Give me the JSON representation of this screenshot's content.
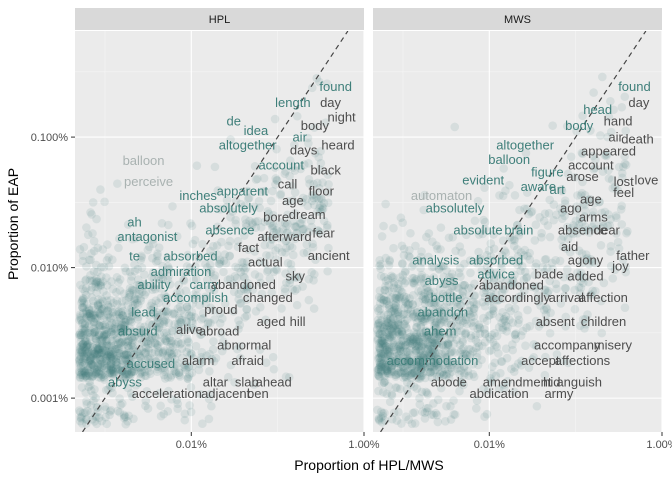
{
  "chart_data": {
    "type": "scatter",
    "xlabel": "Proportion of HPL/MWS",
    "ylabel": "Proportion of EAP",
    "x_scale": "log10",
    "y_scale": "log10",
    "xlim": [
      4.5e-06,
      0.01
    ],
    "ylim": [
      5.5e-06,
      0.0065
    ],
    "x_ticks": [
      {
        "value": 0.0001,
        "label": "0.01%"
      },
      {
        "value": 0.01,
        "label": "1.00%"
      }
    ],
    "y_ticks": [
      {
        "value": 1e-05,
        "label": "0.001%"
      },
      {
        "value": 0.0001,
        "label": "0.010%"
      },
      {
        "value": 0.001,
        "label": "0.100%"
      }
    ],
    "reference_line": "y = x (dashed)",
    "color": "#3f7f7a",
    "text_dark": "#4d4d4d",
    "text_light": "#a9b2b1",
    "panels": [
      {
        "strip": "HPL",
        "x_tick_labels": [
          "0.01%",
          "1.00%"
        ],
        "words": [
          {
            "t": "found",
            "x": 0.0047,
            "y": 0.0024
          },
          {
            "t": "day",
            "x": 0.0041,
            "y": 0.0018
          },
          {
            "t": "night",
            "x": 0.0055,
            "y": 0.0014
          },
          {
            "t": "length",
            "x": 0.0015,
            "y": 0.0018
          },
          {
            "t": "de",
            "x": 0.00031,
            "y": 0.0013
          },
          {
            "t": "idea",
            "x": 0.00056,
            "y": 0.0011
          },
          {
            "t": "body",
            "x": 0.0027,
            "y": 0.0012
          },
          {
            "t": "air",
            "x": 0.0018,
            "y": 0.00098
          },
          {
            "t": "altogether",
            "x": 0.00045,
            "y": 0.00085
          },
          {
            "t": "days",
            "x": 0.002,
            "y": 0.00078
          },
          {
            "t": "heard",
            "x": 0.005,
            "y": 0.00085
          },
          {
            "t": "balloon",
            "x": 2.8e-05,
            "y": 0.00065
          },
          {
            "t": "account",
            "x": 0.0011,
            "y": 0.0006
          },
          {
            "t": "black",
            "x": 0.0036,
            "y": 0.00055
          },
          {
            "t": "perceive",
            "x": 3.2e-05,
            "y": 0.00045
          },
          {
            "t": "call",
            "x": 0.0013,
            "y": 0.00043
          },
          {
            "t": "inches",
            "x": 0.00012,
            "y": 0.00035
          },
          {
            "t": "apparent",
            "x": 0.00039,
            "y": 0.00038
          },
          {
            "t": "age",
            "x": 0.0015,
            "y": 0.00032
          },
          {
            "t": "floor",
            "x": 0.0032,
            "y": 0.00038
          },
          {
            "t": "absolutely",
            "x": 0.00027,
            "y": 0.00028
          },
          {
            "t": "bore",
            "x": 0.00096,
            "y": 0.00024
          },
          {
            "t": "dream",
            "x": 0.0022,
            "y": 0.00025
          },
          {
            "t": "ah",
            "x": 2.2e-05,
            "y": 0.00022
          },
          {
            "t": "absence",
            "x": 0.00028,
            "y": 0.00019
          },
          {
            "t": "antagonist",
            "x": 3.1e-05,
            "y": 0.00017
          },
          {
            "t": "afterward",
            "x": 0.0012,
            "y": 0.00017
          },
          {
            "t": "fear",
            "x": 0.0034,
            "y": 0.00018
          },
          {
            "t": "fact",
            "x": 0.00046,
            "y": 0.00014
          },
          {
            "t": "te",
            "x": 2.2e-05,
            "y": 0.00012
          },
          {
            "t": "absorbed",
            "x": 9.8e-05,
            "y": 0.00012
          },
          {
            "t": "actual",
            "x": 0.00072,
            "y": 0.000108
          },
          {
            "t": "ancient",
            "x": 0.0039,
            "y": 0.000122
          },
          {
            "t": "admiration",
            "x": 7.6e-05,
            "y": 9.2e-05
          },
          {
            "t": "sky",
            "x": 0.0016,
            "y": 8.5e-05
          },
          {
            "t": "ability",
            "x": 3.7e-05,
            "y": 7.3e-05
          },
          {
            "t": "carry",
            "x": 0.00014,
            "y": 7.3e-05
          },
          {
            "t": "abandoned",
            "x": 0.0004,
            "y": 7.3e-05
          },
          {
            "t": "accomplish",
            "x": 0.000112,
            "y": 5.8e-05
          },
          {
            "t": "changed",
            "x": 0.00077,
            "y": 5.8e-05
          },
          {
            "t": "lead",
            "x": 2.8e-05,
            "y": 4.5e-05
          },
          {
            "t": "proud",
            "x": 0.00022,
            "y": 4.7e-05
          },
          {
            "t": "aged",
            "x": 0.00084,
            "y": 3.8e-05
          },
          {
            "t": "hill",
            "x": 0.0017,
            "y": 3.8e-05
          },
          {
            "t": "absurd",
            "x": 2.4e-05,
            "y": 3.2e-05
          },
          {
            "t": "alive",
            "x": 9.5e-05,
            "y": 3.3e-05
          },
          {
            "t": "abroad",
            "x": 0.00021,
            "y": 3.2e-05
          },
          {
            "t": "abnormal",
            "x": 0.00041,
            "y": 2.5e-05
          },
          {
            "t": "accused",
            "x": 3.4e-05,
            "y": 1.8e-05
          },
          {
            "t": "alarm",
            "x": 0.00012,
            "y": 1.9e-05
          },
          {
            "t": "afraid",
            "x": 0.00045,
            "y": 1.9e-05
          },
          {
            "t": "abyss",
            "x": 1.7e-05,
            "y": 1.3e-05
          },
          {
            "t": "altar",
            "x": 0.00019,
            "y": 1.3e-05
          },
          {
            "t": "slab",
            "x": 0.00044,
            "y": 1.3e-05
          },
          {
            "t": "ahead",
            "x": 0.0009,
            "y": 1.3e-05
          },
          {
            "t": "acceleration",
            "x": 5.2e-05,
            "y": 1.06e-05
          },
          {
            "t": "adjacent",
            "x": 0.00025,
            "y": 1.06e-05
          },
          {
            "t": "ben",
            "x": 0.00059,
            "y": 1.06e-05
          }
        ]
      },
      {
        "strip": "MWS",
        "x_tick_labels": [
          "0.01%",
          "1.00%"
        ],
        "words": [
          {
            "t": "found",
            "x": 0.0048,
            "y": 0.0024
          },
          {
            "t": "day",
            "x": 0.0054,
            "y": 0.0018
          },
          {
            "t": "head",
            "x": 0.0018,
            "y": 0.0016
          },
          {
            "t": "hand",
            "x": 0.0031,
            "y": 0.0013
          },
          {
            "t": "body",
            "x": 0.0011,
            "y": 0.0012
          },
          {
            "t": "air",
            "x": 0.0029,
            "y": 0.00098
          },
          {
            "t": "death",
            "x": 0.0052,
            "y": 0.00095
          },
          {
            "t": "altogether",
            "x": 0.00026,
            "y": 0.00085
          },
          {
            "t": "appeared",
            "x": 0.0024,
            "y": 0.00077
          },
          {
            "t": "balloon",
            "x": 0.00017,
            "y": 0.00066
          },
          {
            "t": "account",
            "x": 0.0015,
            "y": 0.0006
          },
          {
            "t": "figure",
            "x": 0.00047,
            "y": 0.00053
          },
          {
            "t": "arose",
            "x": 0.0012,
            "y": 0.00049
          },
          {
            "t": "lost",
            "x": 0.0036,
            "y": 0.00045
          },
          {
            "t": "love",
            "x": 0.0066,
            "y": 0.00046
          },
          {
            "t": "evident",
            "x": 8.5e-05,
            "y": 0.00046
          },
          {
            "t": "aware",
            "x": 0.00037,
            "y": 0.00041
          },
          {
            "t": "art",
            "x": 0.00061,
            "y": 0.00039
          },
          {
            "t": "feel",
            "x": 0.0036,
            "y": 0.00037
          },
          {
            "t": "automaton",
            "x": 2.8e-05,
            "y": 0.00035
          },
          {
            "t": "age",
            "x": 0.0015,
            "y": 0.00033
          },
          {
            "t": "absolutely",
            "x": 4e-05,
            "y": 0.00028
          },
          {
            "t": "ago",
            "x": 0.00088,
            "y": 0.00028
          },
          {
            "t": "arms",
            "x": 0.0016,
            "y": 0.00024
          },
          {
            "t": "absolute",
            "x": 7.4e-05,
            "y": 0.00019
          },
          {
            "t": "brain",
            "x": 0.00022,
            "y": 0.00019
          },
          {
            "t": "absence",
            "x": 0.0012,
            "y": 0.00019
          },
          {
            "t": "dear",
            "x": 0.0023,
            "y": 0.00019
          },
          {
            "t": "aid",
            "x": 0.00085,
            "y": 0.000142
          },
          {
            "t": "father",
            "x": 0.0046,
            "y": 0.000122
          },
          {
            "t": "analysis",
            "x": 2.4e-05,
            "y": 0.000112
          },
          {
            "t": "absorbed",
            "x": 0.00012,
            "y": 0.000112
          },
          {
            "t": "agony",
            "x": 0.0013,
            "y": 0.000112
          },
          {
            "t": "joy",
            "x": 0.0033,
            "y": 0.000101
          },
          {
            "t": "advice",
            "x": 0.00012,
            "y": 8.8e-05
          },
          {
            "t": "bade",
            "x": 0.00049,
            "y": 8.8e-05
          },
          {
            "t": "added",
            "x": 0.0013,
            "y": 8.5e-05
          },
          {
            "t": "abyss",
            "x": 2.8e-05,
            "y": 7.8e-05
          },
          {
            "t": "abandoned",
            "x": 0.00018,
            "y": 7.2e-05
          },
          {
            "t": "bottle",
            "x": 3.2e-05,
            "y": 5.8e-05
          },
          {
            "t": "accordingly",
            "x": 0.00021,
            "y": 5.8e-05
          },
          {
            "t": "arrival",
            "x": 0.00078,
            "y": 5.8e-05
          },
          {
            "t": "affection",
            "x": 0.0021,
            "y": 5.8e-05
          },
          {
            "t": "abandon",
            "x": 2.9e-05,
            "y": 4.5e-05
          },
          {
            "t": "absent",
            "x": 0.00058,
            "y": 3.8e-05
          },
          {
            "t": "children",
            "x": 0.0021,
            "y": 3.8e-05
          },
          {
            "t": "ahem",
            "x": 2.7e-05,
            "y": 3.2e-05
          },
          {
            "t": "accompany",
            "x": 0.0008,
            "y": 2.5e-05
          },
          {
            "t": "misery",
            "x": 0.0027,
            "y": 2.5e-05
          },
          {
            "t": "accommodation",
            "x": 2.2e-05,
            "y": 1.9e-05
          },
          {
            "t": "accept",
            "x": 0.00039,
            "y": 1.9e-05
          },
          {
            "t": "affections",
            "x": 0.0012,
            "y": 1.9e-05
          },
          {
            "t": "abode",
            "x": 3.4e-05,
            "y": 1.3e-05
          },
          {
            "t": "amendment",
            "x": 0.00021,
            "y": 1.3e-05
          },
          {
            "t": "hid",
            "x": 0.00053,
            "y": 1.3e-05
          },
          {
            "t": "anguish",
            "x": 0.0011,
            "y": 1.3e-05
          },
          {
            "t": "abdication",
            "x": 0.00013,
            "y": 1.06e-05
          },
          {
            "t": "army",
            "x": 0.00064,
            "y": 1.06e-05
          }
        ]
      }
    ]
  }
}
